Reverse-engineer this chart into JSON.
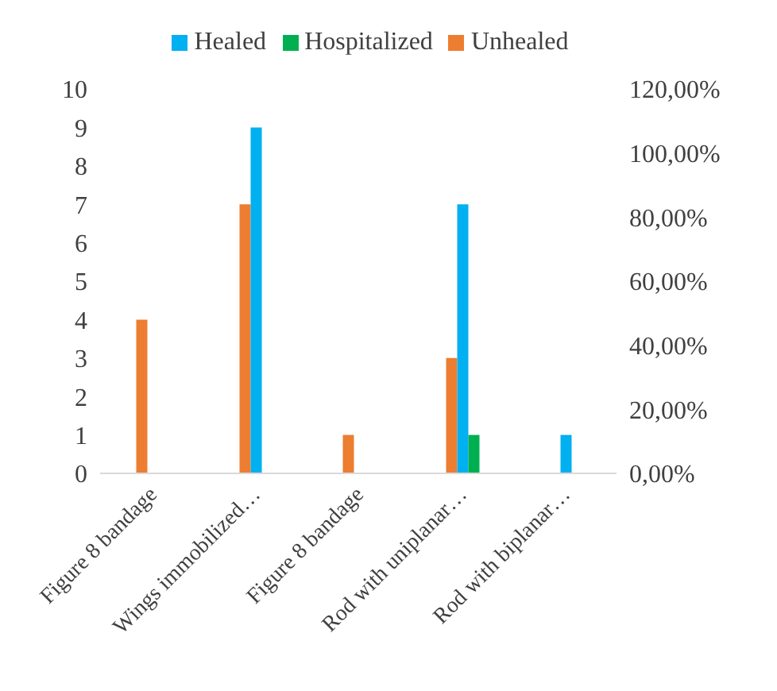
{
  "chart_data": {
    "type": "bar",
    "categories": [
      "Figure 8 bandage",
      "Wings immobilized…",
      "Figure 8 bandage",
      "Rod with uniplanar…",
      "Rod with biplanar…"
    ],
    "series": [
      {
        "name": "Unhealed",
        "color": "#ed7d31",
        "values": [
          4,
          7,
          1,
          3,
          0
        ]
      },
      {
        "name": "Healed",
        "color": "#00b0f0",
        "values": [
          0,
          9,
          0,
          7,
          1
        ]
      },
      {
        "name": "Hospitalized",
        "color": "#00b050",
        "values": [
          0,
          0,
          0,
          1,
          0
        ]
      }
    ],
    "ylim": [
      0,
      10
    ],
    "yticks": [
      0,
      1,
      2,
      3,
      4,
      5,
      6,
      7,
      8,
      9,
      10
    ],
    "y2lim": [
      0,
      120
    ],
    "y2ticks": [
      {
        "value": 0,
        "label": "0,00%"
      },
      {
        "value": 20,
        "label": "20,00%"
      },
      {
        "value": 40,
        "label": "40,00%"
      },
      {
        "value": 60,
        "label": "60,00%"
      },
      {
        "value": 80,
        "label": "80,00%"
      },
      {
        "value": 100,
        "label": "100,00%"
      },
      {
        "value": 120,
        "label": "120,00%"
      }
    ],
    "grid": false,
    "legend": "top"
  }
}
